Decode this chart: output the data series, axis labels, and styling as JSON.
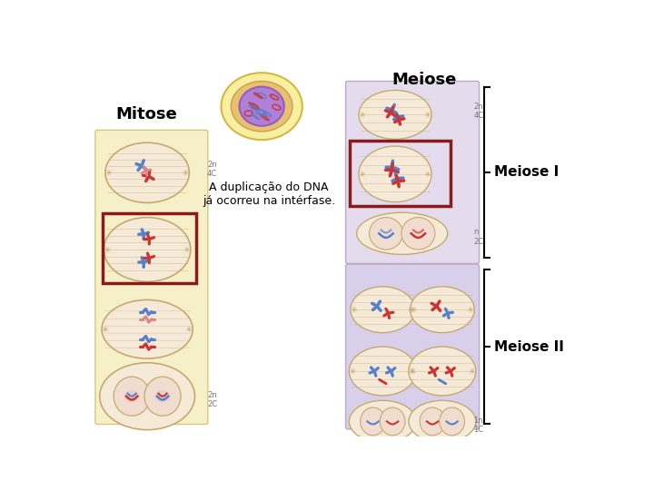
{
  "title_meiose": "Meiose",
  "title_mitose": "Mitose",
  "label_meiose_I": "Meiose I",
  "label_meiose_II": "Meiose II",
  "annotation_text": "A duplicação do DNA\njá ocorreu na intérfase.",
  "bg_color": "#ffffff",
  "mitose_panel_color": "#f5f0c8",
  "meiose_I_panel_color": "#e4dced",
  "meiose_II_panel_color": "#d8cfea",
  "cell_fill": "#f5ead8",
  "cell_edge": "#c8a870",
  "chr_blue": "#5580cc",
  "chr_red": "#cc3333",
  "chr_pink": "#dd8888",
  "red_box": "#8b1a1a",
  "title_fontsize": 13,
  "label_fontsize": 11,
  "annotation_fontsize": 9,
  "small_label_fontsize": 6,
  "nucleus_outer_color": "#f0e070",
  "nucleus_mid_color": "#d4a060",
  "nucleus_inner_color": "#9060c0",
  "spindle_color": "#c8a870"
}
